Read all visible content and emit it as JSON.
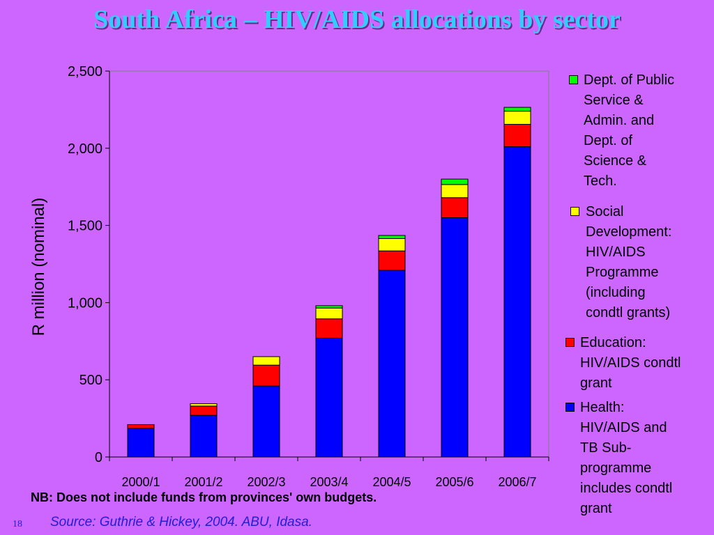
{
  "slide": {
    "title": "South Africa – HIV/AIDS allocations by sector",
    "note": "NB: Does not include funds from provinces' own budgets.",
    "source": "Source: Guthrie & Hickey, 2004. ABU, Idasa.",
    "slide_number": "18"
  },
  "chart_data": {
    "type": "bar",
    "stacked": true,
    "title": "",
    "xlabel": "",
    "ylabel": "R million (nominal)",
    "ylim": [
      0,
      2500
    ],
    "yticks": [
      0,
      500,
      1000,
      1500,
      2000,
      2500
    ],
    "ytick_labels": [
      "0",
      "500",
      "1,000",
      "1,500",
      "2,000",
      "2,500"
    ],
    "categories": [
      "2000/1",
      "2001/2",
      "2002/3",
      "2003/4",
      "2004/5",
      "2005/6",
      "2006/7"
    ],
    "legend_position": "right",
    "series": [
      {
        "name": "Health: HIV/AIDS and TB Sub-programme includes condtl grant",
        "color": "#0000ff",
        "values": [
          185,
          270,
          460,
          770,
          1210,
          1550,
          2010
        ]
      },
      {
        "name": "Education: HIV/AIDS condtl grant",
        "color": "#ff0000",
        "values": [
          25,
          60,
          135,
          125,
          125,
          130,
          145
        ]
      },
      {
        "name": "Social Development: HIV/AIDS Programme (including condtl grants)",
        "color": "#ffff00",
        "values": [
          0,
          15,
          55,
          70,
          80,
          85,
          85
        ]
      },
      {
        "name": "Dept. of Public Service & Admin. and Dept. of Science & Tech.",
        "color": "#00ff00",
        "values": [
          0,
          0,
          0,
          15,
          20,
          35,
          25
        ]
      }
    ]
  },
  "legend": {
    "items": [
      {
        "label": "Dept. of Public\nService &\nAdmin. and\nDept. of\nScience &\nTech.",
        "color": "#00ff00"
      },
      {
        "label": "Social\nDevelopment:\nHIV/AIDS\nProgramme\n(including\ncondtl grants)",
        "color": "#ffff00"
      },
      {
        "label": "Education:\nHIV/AIDS condtl\ngrant",
        "color": "#ff0000"
      },
      {
        "label": "Health:\nHIV/AIDS and\nTB Sub-\nprogramme\nincludes condtl\ngrant",
        "color": "#0000ff"
      }
    ]
  }
}
